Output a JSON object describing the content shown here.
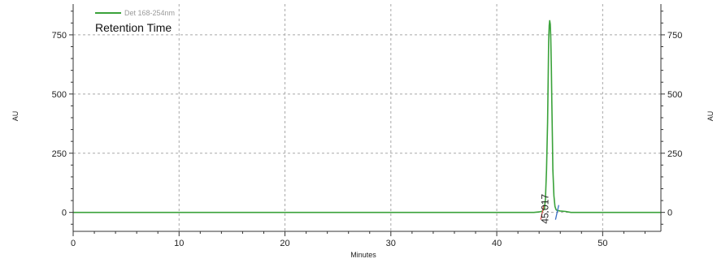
{
  "chart_data": {
    "type": "line",
    "title": "",
    "xlabel": "Minutes",
    "ylabel": "AU",
    "ylabel_right": "AU",
    "xlim": [
      0,
      55.5
    ],
    "ylim": [
      -80,
      880
    ],
    "xticks": [
      0,
      10,
      20,
      30,
      40,
      50
    ],
    "yticks": [
      0,
      250,
      500,
      750
    ],
    "grid": true,
    "legend_placement": "top-left",
    "annotation": "Retention Time",
    "colors": {
      "series": "#3aa23a",
      "grid": "#a8a8a8",
      "axis": "#333333",
      "baseline_start": "#d9534f",
      "baseline_end": "#3a6fc4"
    },
    "series": [
      {
        "name": "Det 168-254nm",
        "x": [
          0,
          43.5,
          44.0,
          44.3,
          44.5,
          44.6,
          44.7,
          44.8,
          44.85,
          44.9,
          44.95,
          45.0,
          45.05,
          45.1,
          45.15,
          45.2,
          45.25,
          45.3,
          45.4,
          45.5,
          45.6,
          45.7,
          46.0,
          46.5,
          47.0,
          55.5
        ],
        "y": [
          0,
          0,
          2,
          5,
          15,
          60,
          180,
          380,
          560,
          720,
          790,
          810,
          795,
          740,
          620,
          470,
          320,
          180,
          70,
          25,
          12,
          8,
          6,
          4,
          0,
          0
        ]
      }
    ],
    "peaks": [
      {
        "label": "45.017",
        "x": 45.017
      }
    ],
    "baseline_markers": [
      {
        "x": 44.3,
        "color_key": "baseline_start"
      },
      {
        "x": 45.7,
        "color_key": "baseline_end"
      }
    ]
  }
}
